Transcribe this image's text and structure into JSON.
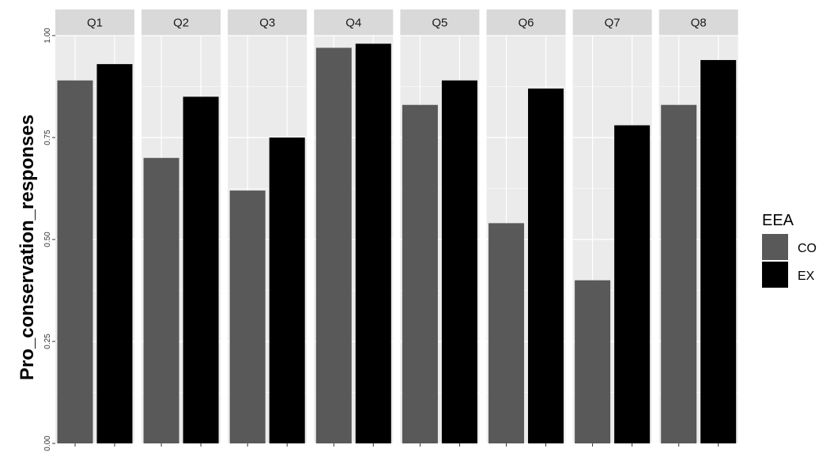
{
  "chart_data": {
    "type": "bar",
    "facets": [
      "Q1",
      "Q2",
      "Q3",
      "Q4",
      "Q5",
      "Q6",
      "Q7",
      "Q8"
    ],
    "series": [
      {
        "name": "CO",
        "color": "#595959",
        "values": [
          0.89,
          0.7,
          0.62,
          0.97,
          0.83,
          0.54,
          0.4,
          0.83
        ]
      },
      {
        "name": "EX",
        "color": "#000000",
        "values": [
          0.93,
          0.85,
          0.75,
          0.98,
          0.89,
          0.87,
          0.78,
          0.94
        ]
      }
    ],
    "ylabel": "Pro_conservation_responses",
    "xlabel": "",
    "ylim": [
      0,
      1
    ],
    "yticks": [
      "0.00",
      "0.25",
      "0.50",
      "0.75",
      "1.00"
    ],
    "ytick_values": [
      0,
      0.25,
      0.5,
      0.75,
      1.0
    ],
    "legend_title": "EEA",
    "legend_position": "right",
    "grid": true,
    "panel_background": "#ebebeb",
    "strip_background": "#d9d9d9",
    "gridline_color": "#ffffff"
  }
}
